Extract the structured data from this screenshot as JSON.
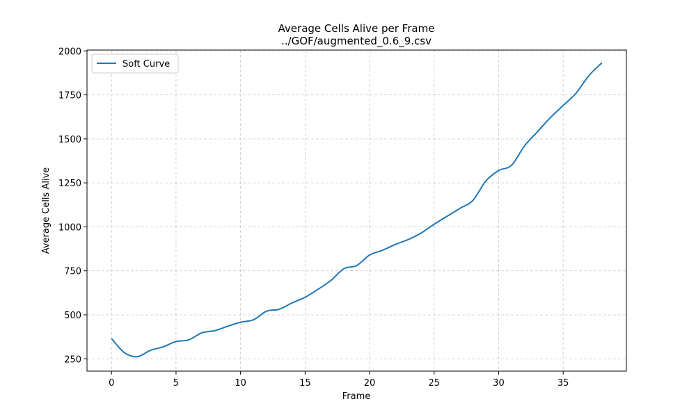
{
  "chart_data": {
    "type": "line",
    "title": "Average Cells Alive per Frame",
    "subtitle": "../GOF/augmented_0.6_9.csv",
    "xlabel": "Frame",
    "ylabel": "Average Cells Alive",
    "xlim": [
      -1.9,
      39.9
    ],
    "ylim": [
      180,
      2005
    ],
    "xticks": [
      0,
      5,
      10,
      15,
      20,
      25,
      30,
      35
    ],
    "yticks": [
      250,
      500,
      750,
      1000,
      1250,
      1500,
      1750,
      2000
    ],
    "grid": true,
    "legend_position": "top-left",
    "series": [
      {
        "name": "Soft Curve",
        "color": "#1f77b4",
        "x": [
          0,
          1,
          2,
          3,
          4,
          5,
          6,
          7,
          8,
          9,
          10,
          11,
          12,
          13,
          14,
          15,
          16,
          17,
          18,
          19,
          20,
          21,
          22,
          23,
          24,
          25,
          26,
          27,
          28,
          29,
          30,
          31,
          32,
          33,
          34,
          35,
          36,
          37,
          38
        ],
        "y": [
          365,
          285,
          262,
          298,
          318,
          348,
          358,
          398,
          410,
          435,
          458,
          472,
          520,
          532,
          568,
          600,
          645,
          695,
          762,
          780,
          840,
          867,
          900,
          928,
          965,
          1015,
          1060,
          1105,
          1150,
          1260,
          1320,
          1350,
          1460,
          1540,
          1620,
          1690,
          1760,
          1860,
          1932
        ]
      }
    ]
  }
}
